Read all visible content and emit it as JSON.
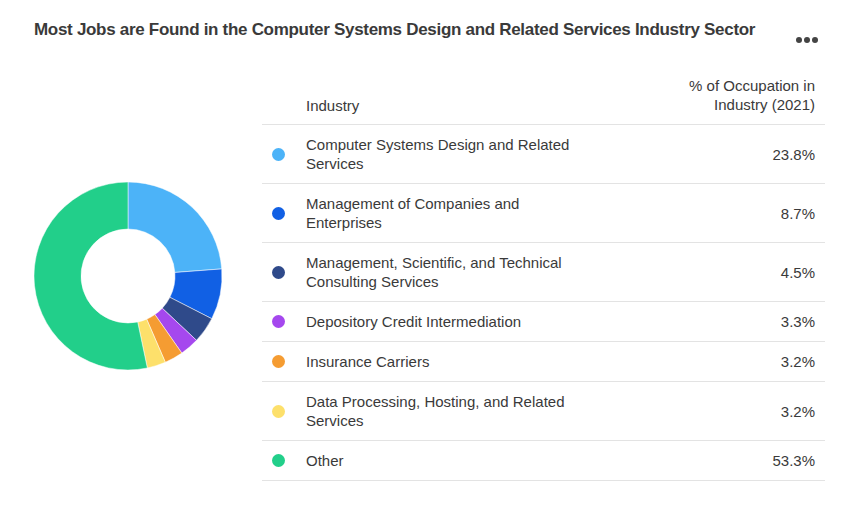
{
  "chart_data": {
    "type": "pie",
    "title": "Most Jobs are Found in the Computer Systems Design and Related Services Industry Sector",
    "table_headers": [
      "Industry",
      "% of Occupation in Industry (2021)"
    ],
    "categories": [
      "Computer Systems Design and Related Services",
      "Management of Companies and Enterprises",
      "Management, Scientific, and Technical Consulting Services",
      "Depository Credit Intermediation",
      "Insurance Carriers",
      "Data Processing, Hosting, and Related Services",
      "Other"
    ],
    "values": [
      23.8,
      8.7,
      4.5,
      3.3,
      3.2,
      3.2,
      53.3
    ],
    "value_labels": [
      "23.8%",
      "8.7%",
      "4.5%",
      "3.3%",
      "3.2%",
      "3.2%",
      "53.3%"
    ],
    "colors": [
      "#4cb3f8",
      "#1160e4",
      "#2f4a8a",
      "#a548ee",
      "#f59c32",
      "#fde06b",
      "#22cf8a"
    ],
    "legend": "right"
  }
}
